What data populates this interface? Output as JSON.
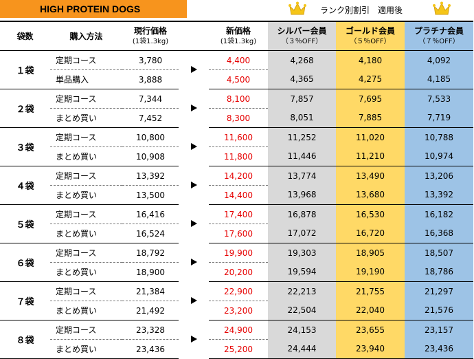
{
  "title": "HIGH PROTEIN DOGS",
  "discount_note": "ランク別割引　適用後",
  "header": {
    "bags": "袋数",
    "method": "購入方法",
    "current_price": "現行価格",
    "current_price_sub": "(1袋1.3kg)",
    "new_price": "新価格",
    "new_price_sub": "(1袋1.3kg)",
    "silver": "シルバー会員",
    "silver_sub": "（３％OFF）",
    "gold": "ゴールド会員",
    "gold_sub": "（５％OFF）",
    "platinum": "プラチナ会員",
    "platinum_sub": "（７％OFF）"
  },
  "colors": {
    "title_bg": "#F7941D",
    "new_price_text": "#E60000",
    "silver_bg": "#D9D9D9",
    "gold_bg": "#FFD966",
    "platinum_bg": "#9DC3E6",
    "crown": "#F5C518"
  },
  "groups": [
    {
      "bags": "１袋",
      "rows": [
        {
          "method": "定期コース",
          "current": "3,780",
          "new": "4,400",
          "silver": "4,268",
          "gold": "4,180",
          "platinum": "4,092"
        },
        {
          "method": "単品購入",
          "current": "3,888",
          "new": "4,500",
          "silver": "4,365",
          "gold": "4,275",
          "platinum": "4,185"
        }
      ]
    },
    {
      "bags": "２袋",
      "rows": [
        {
          "method": "定期コース",
          "current": "7,344",
          "new": "8,100",
          "silver": "7,857",
          "gold": "7,695",
          "platinum": "7,533"
        },
        {
          "method": "まとめ買い",
          "current": "7,452",
          "new": "8,300",
          "silver": "8,051",
          "gold": "7,885",
          "platinum": "7,719"
        }
      ]
    },
    {
      "bags": "３袋",
      "rows": [
        {
          "method": "定期コース",
          "current": "10,800",
          "new": "11,600",
          "silver": "11,252",
          "gold": "11,020",
          "platinum": "10,788"
        },
        {
          "method": "まとめ買い",
          "current": "10,908",
          "new": "11,800",
          "silver": "11,446",
          "gold": "11,210",
          "platinum": "10,974"
        }
      ]
    },
    {
      "bags": "４袋",
      "rows": [
        {
          "method": "定期コース",
          "current": "13,392",
          "new": "14,200",
          "silver": "13,774",
          "gold": "13,490",
          "platinum": "13,206"
        },
        {
          "method": "まとめ買い",
          "current": "13,500",
          "new": "14,400",
          "silver": "13,968",
          "gold": "13,680",
          "platinum": "13,392"
        }
      ]
    },
    {
      "bags": "５袋",
      "rows": [
        {
          "method": "定期コース",
          "current": "16,416",
          "new": "17,400",
          "silver": "16,878",
          "gold": "16,530",
          "platinum": "16,182"
        },
        {
          "method": "まとめ買い",
          "current": "16,524",
          "new": "17,600",
          "silver": "17,072",
          "gold": "16,720",
          "platinum": "16,368"
        }
      ]
    },
    {
      "bags": "６袋",
      "rows": [
        {
          "method": "定期コース",
          "current": "18,792",
          "new": "19,900",
          "silver": "19,303",
          "gold": "18,905",
          "platinum": "18,507"
        },
        {
          "method": "まとめ買い",
          "current": "18,900",
          "new": "20,200",
          "silver": "19,594",
          "gold": "19,190",
          "platinum": "18,786"
        }
      ]
    },
    {
      "bags": "７袋",
      "rows": [
        {
          "method": "定期コース",
          "current": "21,384",
          "new": "22,900",
          "silver": "22,213",
          "gold": "21,755",
          "platinum": "21,297"
        },
        {
          "method": "まとめ買い",
          "current": "21,492",
          "new": "23,200",
          "silver": "22,504",
          "gold": "22,040",
          "platinum": "21,576"
        }
      ]
    },
    {
      "bags": "８袋",
      "rows": [
        {
          "method": "定期コース",
          "current": "23,328",
          "new": "24,900",
          "silver": "24,153",
          "gold": "23,655",
          "platinum": "23,157"
        },
        {
          "method": "まとめ買い",
          "current": "23,436",
          "new": "25,200",
          "silver": "24,444",
          "gold": "23,940",
          "platinum": "23,436"
        }
      ]
    }
  ]
}
